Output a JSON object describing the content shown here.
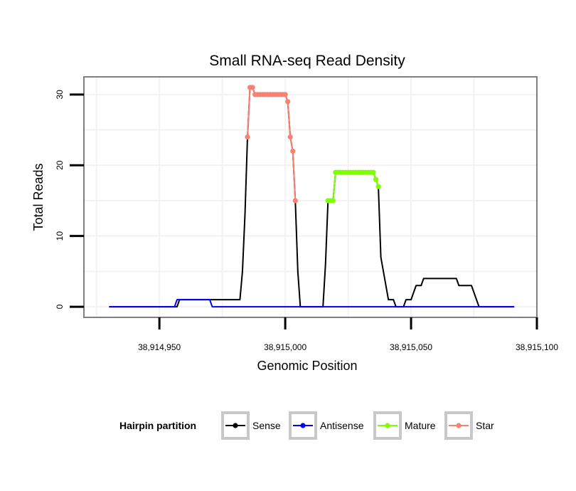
{
  "chart_data": {
    "type": "line",
    "title": "Small RNA-seq Read Density",
    "xlabel": "Genomic Position",
    "ylabel": "Total Reads",
    "xlim": [
      38914920,
      38915100
    ],
    "ylim": [
      -1.5,
      32.5
    ],
    "x_ticks": [
      38914950,
      38915000,
      38915050,
      38915100
    ],
    "x_tick_labels": [
      "38,914,950",
      "38,915,000",
      "38,915,050",
      "38,915,100"
    ],
    "y_ticks": [
      0,
      10,
      20,
      30
    ],
    "y_tick_labels": [
      "0",
      "10",
      "20",
      "30"
    ],
    "grid": true,
    "legend": {
      "title": "Hairpin partition",
      "placement": "bottom",
      "entries": [
        {
          "label": "Sense",
          "color": "#000000"
        },
        {
          "label": "Antisense",
          "color": "#0000ff"
        },
        {
          "label": "Mature",
          "color": "#7fff00"
        },
        {
          "label": "Star",
          "color": "#fa8072"
        }
      ]
    },
    "series": [
      {
        "name": "Sense",
        "color": "#000000",
        "markers": false,
        "points": [
          [
            38914930,
            0
          ],
          [
            38914957,
            0
          ],
          [
            38914958,
            1
          ],
          [
            38914982,
            1
          ],
          [
            38914983,
            5
          ],
          [
            38914984,
            13
          ],
          [
            38914985,
            24
          ],
          [
            38914986,
            31
          ],
          [
            38914987,
            31
          ],
          [
            38914988,
            30
          ],
          [
            38915000,
            30
          ],
          [
            38915001,
            29
          ],
          [
            38915002,
            24
          ],
          [
            38915003,
            22
          ],
          [
            38915004,
            15
          ],
          [
            38915005,
            5
          ],
          [
            38915006,
            0
          ],
          [
            38915015,
            0
          ],
          [
            38915016,
            6
          ],
          [
            38915017,
            15
          ],
          [
            38915019,
            15
          ],
          [
            38915020,
            19
          ],
          [
            38915035,
            19
          ],
          [
            38915036,
            18
          ],
          [
            38915037,
            17
          ],
          [
            38915038,
            7
          ],
          [
            38915039,
            5
          ],
          [
            38915040,
            3
          ],
          [
            38915041,
            1
          ],
          [
            38915043,
            1
          ],
          [
            38915044,
            0
          ],
          [
            38915047,
            0
          ],
          [
            38915048,
            1
          ],
          [
            38915050,
            1
          ],
          [
            38915051,
            2
          ],
          [
            38915052,
            3
          ],
          [
            38915054,
            3
          ],
          [
            38915055,
            4
          ],
          [
            38915068,
            4
          ],
          [
            38915069,
            3
          ],
          [
            38915074,
            3
          ],
          [
            38915075,
            2
          ],
          [
            38915076,
            1
          ],
          [
            38915077,
            0
          ],
          [
            38915091,
            0
          ]
        ]
      },
      {
        "name": "Antisense",
        "color": "#0000ff",
        "markers": false,
        "points": [
          [
            38914930,
            0
          ],
          [
            38914956,
            0
          ],
          [
            38914957,
            1
          ],
          [
            38914970,
            1
          ],
          [
            38914971,
            0
          ],
          [
            38915091,
            0
          ]
        ]
      },
      {
        "name": "Mature",
        "color": "#7fff00",
        "markers": true,
        "points": [
          [
            38915017,
            15
          ],
          [
            38915018,
            15
          ],
          [
            38915019,
            15
          ],
          [
            38915020,
            19
          ],
          [
            38915021,
            19
          ],
          [
            38915022,
            19
          ],
          [
            38915023,
            19
          ],
          [
            38915024,
            19
          ],
          [
            38915025,
            19
          ],
          [
            38915026,
            19
          ],
          [
            38915027,
            19
          ],
          [
            38915028,
            19
          ],
          [
            38915029,
            19
          ],
          [
            38915030,
            19
          ],
          [
            38915031,
            19
          ],
          [
            38915032,
            19
          ],
          [
            38915033,
            19
          ],
          [
            38915034,
            19
          ],
          [
            38915035,
            19
          ],
          [
            38915036,
            18
          ],
          [
            38915037,
            17
          ]
        ]
      },
      {
        "name": "Star",
        "color": "#fa8072",
        "markers": true,
        "points": [
          [
            38914985,
            24
          ],
          [
            38914986,
            31
          ],
          [
            38914987,
            31
          ],
          [
            38914988,
            30
          ],
          [
            38914989,
            30
          ],
          [
            38914990,
            30
          ],
          [
            38914991,
            30
          ],
          [
            38914992,
            30
          ],
          [
            38914993,
            30
          ],
          [
            38914994,
            30
          ],
          [
            38914995,
            30
          ],
          [
            38914996,
            30
          ],
          [
            38914997,
            30
          ],
          [
            38914998,
            30
          ],
          [
            38914999,
            30
          ],
          [
            38915000,
            30
          ],
          [
            38915001,
            29
          ],
          [
            38915002,
            24
          ],
          [
            38915003,
            22
          ],
          [
            38915004,
            15
          ]
        ]
      }
    ]
  }
}
